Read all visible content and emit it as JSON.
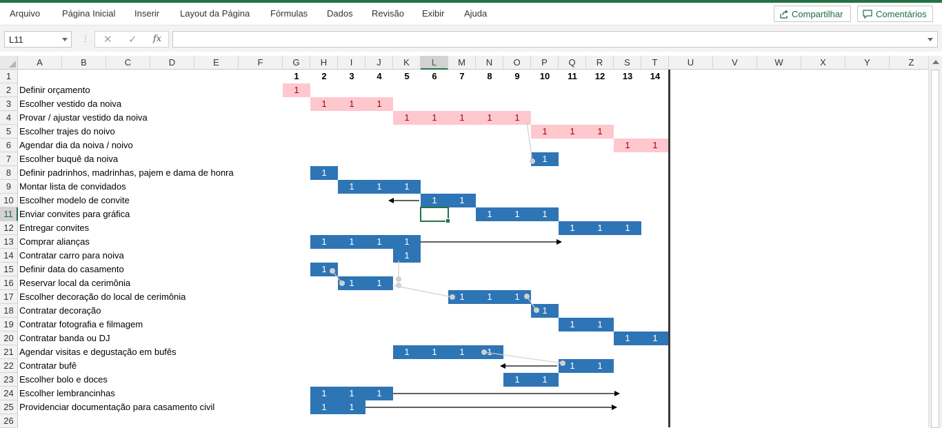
{
  "ribbon": {
    "tabs": [
      "Arquivo",
      "Página Inicial",
      "Inserir",
      "Layout da Página",
      "Fórmulas",
      "Dados",
      "Revisão",
      "Exibir",
      "Ajuda"
    ],
    "share_label": "Compartilhar",
    "comments_label": "Comentários"
  },
  "formula_bar": {
    "name_box": "L11",
    "cancel_icon": "✕",
    "enter_icon": "✓",
    "fx_icon": "fx",
    "value": ""
  },
  "columns": [
    "A",
    "B",
    "C",
    "D",
    "E",
    "F",
    "G",
    "H",
    "I",
    "J",
    "K",
    "L",
    "M",
    "N",
    "O",
    "P",
    "Q",
    "R",
    "S",
    "T",
    "U",
    "V",
    "W",
    "X",
    "Y",
    "Z"
  ],
  "selected_column": "L",
  "rows": [
    "1",
    "2",
    "3",
    "4",
    "5",
    "6",
    "7",
    "8",
    "9",
    "10",
    "11",
    "12",
    "13",
    "14",
    "15",
    "16",
    "17",
    "18",
    "19",
    "20",
    "21",
    "22",
    "23",
    "24",
    "25",
    "26"
  ],
  "selected_row": "11",
  "week_numbers": [
    "1",
    "2",
    "3",
    "4",
    "5",
    "6",
    "7",
    "8",
    "9",
    "10",
    "11",
    "12",
    "13",
    "14"
  ],
  "tasks": [
    {
      "row": 2,
      "label": "Definir orçamento",
      "color": "pink",
      "cols": [
        "G"
      ]
    },
    {
      "row": 3,
      "label": "Escolher vestido da noiva",
      "color": "pink",
      "cols": [
        "H",
        "I",
        "J"
      ]
    },
    {
      "row": 4,
      "label": "Provar / ajustar vestido da noiva",
      "color": "pink",
      "cols": [
        "K",
        "L",
        "M",
        "N",
        "O"
      ]
    },
    {
      "row": 5,
      "label": "Escolher trajes do noivo",
      "color": "pink",
      "cols": [
        "P",
        "Q",
        "R"
      ]
    },
    {
      "row": 6,
      "label": "Agendar dia da noiva / noivo",
      "color": "pink",
      "cols": [
        "S",
        "T"
      ]
    },
    {
      "row": 7,
      "label": "Escolher buquê da noiva",
      "color": "blue",
      "cols": [
        "P"
      ]
    },
    {
      "row": 8,
      "label": "Definir padrinhos, madrinhas, pajem e dama de honra",
      "color": "blue",
      "cols": [
        "H"
      ]
    },
    {
      "row": 9,
      "label": "Montar lista de convidados",
      "color": "blue",
      "cols": [
        "I",
        "J",
        "K"
      ]
    },
    {
      "row": 10,
      "label": "Escolher modelo de convite",
      "color": "blue",
      "cols": [
        "L",
        "M"
      ]
    },
    {
      "row": 11,
      "label": "Enviar convites para gráfica",
      "color": "blue",
      "cols": [
        "N",
        "O",
        "P"
      ]
    },
    {
      "row": 12,
      "label": "Entregar convites",
      "color": "blue",
      "cols": [
        "Q",
        "R",
        "S"
      ]
    },
    {
      "row": 13,
      "label": "Comprar alianças",
      "color": "blue",
      "cols": [
        "H",
        "I",
        "J",
        "K"
      ]
    },
    {
      "row": 14,
      "label": "Contratar carro para noiva",
      "color": "blue",
      "cols": [
        "K"
      ]
    },
    {
      "row": 15,
      "label": "Definir data do casamento",
      "color": "blue",
      "cols": [
        "H"
      ]
    },
    {
      "row": 16,
      "label": "Reservar local da cerimônia",
      "color": "blue",
      "cols": [
        "I",
        "J"
      ]
    },
    {
      "row": 17,
      "label": "Escolher decoração do local de cerimônia",
      "color": "blue",
      "cols": [
        "M",
        "N",
        "O"
      ]
    },
    {
      "row": 18,
      "label": "Contratar decoração",
      "color": "blue",
      "cols": [
        "P"
      ]
    },
    {
      "row": 19,
      "label": "Contratar fotografia e filmagem",
      "color": "blue",
      "cols": [
        "Q",
        "R"
      ]
    },
    {
      "row": 20,
      "label": "Contratar banda ou DJ",
      "color": "blue",
      "cols": [
        "S",
        "T"
      ]
    },
    {
      "row": 21,
      "label": "Agendar visitas e degustação em bufês",
      "color": "blue",
      "cols": [
        "K",
        "L",
        "M",
        "N"
      ]
    },
    {
      "row": 22,
      "label": "Contratar bufê",
      "color": "blue",
      "cols": [
        "Q",
        "R"
      ]
    },
    {
      "row": 23,
      "label": "Escolher bolo e doces",
      "color": "blue",
      "cols": [
        "O",
        "P"
      ]
    },
    {
      "row": 24,
      "label": "Escolher lembrancinhas",
      "color": "blue",
      "cols": [
        "H",
        "I",
        "J"
      ]
    },
    {
      "row": 25,
      "label": "Providenciar documentação para casamento civil",
      "color": "blue",
      "cols": [
        "H",
        "I"
      ]
    }
  ],
  "cell_value": "1",
  "colors": {
    "excel_green": "#217346",
    "pink_fill": "#ffc7ce",
    "pink_text": "#9c0006",
    "blue_fill": "#2e75b6",
    "connector": "#d0d0d0"
  }
}
